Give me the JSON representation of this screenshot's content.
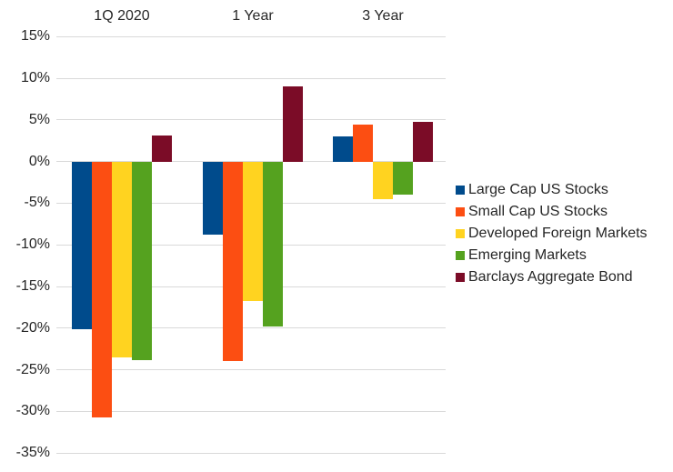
{
  "chart_data": {
    "type": "bar",
    "title": "",
    "categories": [
      "1Q 2020",
      "1 Year",
      "3 Year"
    ],
    "series": [
      {
        "name": "Large Cap US Stocks",
        "color": "#004B8C",
        "values": [
          -20.1,
          -8.8,
          3.0
        ]
      },
      {
        "name": "Small Cap US Stocks",
        "color": "#FC4E12",
        "values": [
          -30.7,
          -24.0,
          4.5
        ]
      },
      {
        "name": "Developed Foreign Markets",
        "color": "#FFD320",
        "values": [
          -23.5,
          -16.8,
          -4.5
        ]
      },
      {
        "name": "Emerging Markets",
        "color": "#55A21F",
        "values": [
          -23.9,
          -19.8,
          -4.0
        ]
      },
      {
        "name": "Barclays Aggregate Bond",
        "color": "#7B0C27",
        "values": [
          3.1,
          9.0,
          4.8
        ]
      }
    ],
    "y_axis": {
      "min": -35,
      "max": 15,
      "step": 5,
      "ticks": [
        {
          "value": 15,
          "label": "15%"
        },
        {
          "value": 10,
          "label": "10%"
        },
        {
          "value": 5,
          "label": "5%"
        },
        {
          "value": 0,
          "label": "0%"
        },
        {
          "value": -5,
          "label": "-5%"
        },
        {
          "value": -10,
          "label": "-10%"
        },
        {
          "value": -15,
          "label": "-15%"
        },
        {
          "value": -20,
          "label": "-20%"
        },
        {
          "value": -25,
          "label": "-25%"
        },
        {
          "value": -30,
          "label": "-30%"
        },
        {
          "value": -35,
          "label": "-35%"
        }
      ]
    },
    "grid": true,
    "legend_position": "right",
    "category_label_position": "top"
  },
  "colors": {
    "background": "#FFFFFF",
    "gridline": "#D9D9D9",
    "text": "#262626"
  }
}
